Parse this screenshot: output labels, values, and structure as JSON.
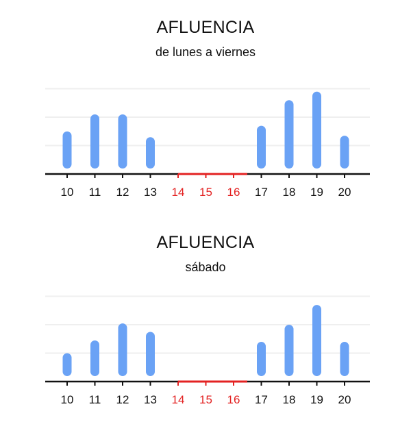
{
  "colors": {
    "bar": "#6aa2f5",
    "closed": "#e32222",
    "axis": "#111111",
    "grid": "#efefef",
    "label": "#111111"
  },
  "chart_data": [
    {
      "type": "bar",
      "title": "AFLUENCIA",
      "subtitle": "de lunes a viernes",
      "categories": [
        "10",
        "11",
        "12",
        "13",
        "14",
        "15",
        "16",
        "17",
        "18",
        "19",
        "20"
      ],
      "values": [
        1.4,
        2.0,
        2.0,
        1.2,
        null,
        null,
        null,
        1.6,
        2.5,
        2.8,
        1.25
      ],
      "closed_categories": [
        "14",
        "15",
        "16"
      ],
      "ylim": [
        0,
        3
      ],
      "grid": true,
      "xlabel": "",
      "ylabel": ""
    },
    {
      "type": "bar",
      "title": "AFLUENCIA",
      "subtitle": "sábado",
      "categories": [
        "10",
        "11",
        "12",
        "13",
        "14",
        "15",
        "16",
        "17",
        "18",
        "19",
        "20"
      ],
      "values": [
        0.9,
        1.35,
        1.95,
        1.65,
        null,
        null,
        null,
        1.3,
        1.9,
        2.6,
        1.3
      ],
      "closed_categories": [
        "14",
        "15",
        "16"
      ],
      "ylim": [
        0,
        3
      ],
      "grid": true,
      "xlabel": "",
      "ylabel": ""
    }
  ]
}
